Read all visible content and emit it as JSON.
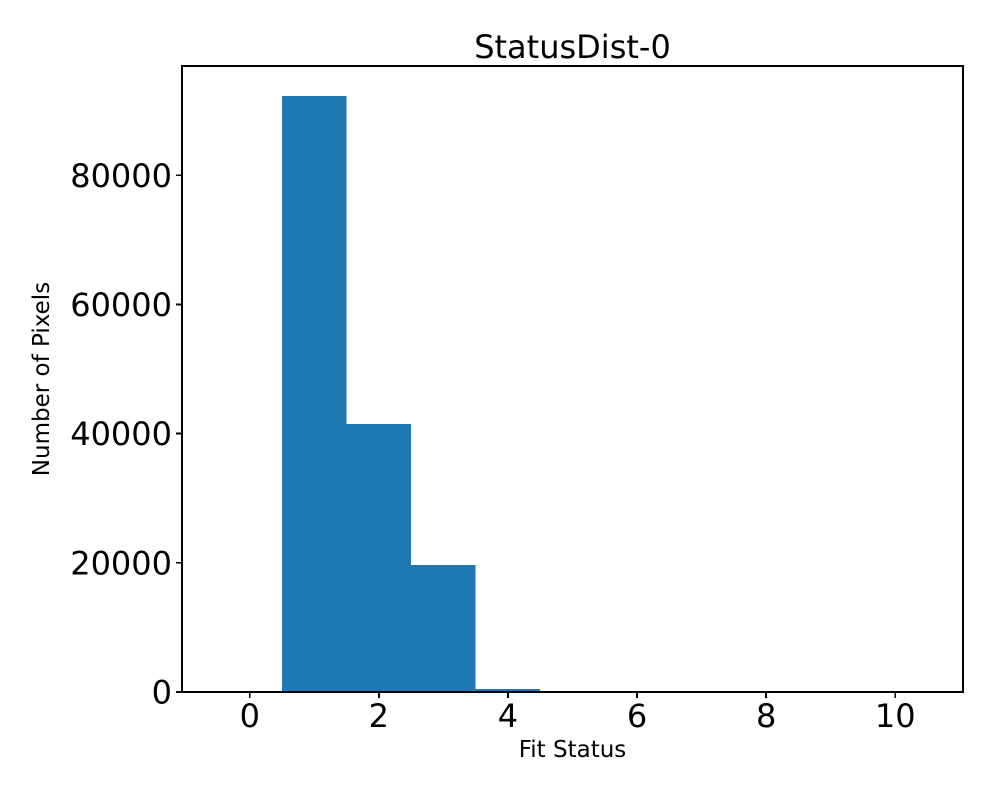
{
  "figure": {
    "background": "#ffffff"
  },
  "chart_data": {
    "type": "bar",
    "subtype": "histogram",
    "title": "StatusDist-0",
    "xlabel": "Fit Status",
    "ylabel": "Number of Pixels",
    "bin_centers": [
      0,
      1,
      2,
      3,
      4,
      5,
      6,
      7,
      8,
      9,
      10
    ],
    "bin_edges": [
      -0.5,
      0.5,
      1.5,
      2.5,
      3.5,
      4.5,
      5.5,
      6.5,
      7.5,
      8.5,
      9.5,
      10.5
    ],
    "counts": [
      0,
      92300,
      41500,
      19700,
      500,
      0,
      0,
      0,
      0,
      0,
      0
    ],
    "x_ticks": [
      0,
      2,
      4,
      6,
      8,
      10
    ],
    "y_ticks": [
      0,
      20000,
      40000,
      60000,
      80000
    ],
    "xlim": [
      -1.05,
      11.05
    ],
    "ylim": [
      0,
      96915
    ],
    "bar_color": "#1f77b4",
    "axis_color": "#000000",
    "text_color": "#000000",
    "grid": false,
    "legend_position": "none"
  }
}
